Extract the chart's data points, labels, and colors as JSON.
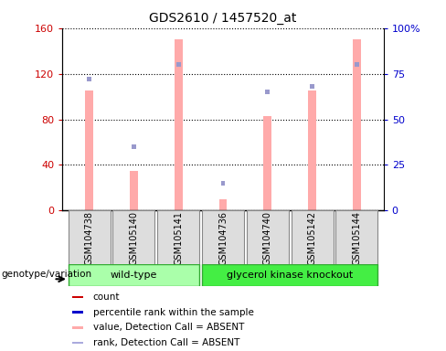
{
  "title": "GDS2610 / 1457520_at",
  "samples": [
    "GSM104738",
    "GSM105140",
    "GSM105141",
    "GSM104736",
    "GSM104740",
    "GSM105142",
    "GSM105144"
  ],
  "pink_values": [
    105,
    35,
    150,
    10,
    83,
    105,
    150
  ],
  "blue_ranks": [
    72,
    35,
    80,
    15,
    65,
    68,
    80
  ],
  "ylim_left": [
    0,
    160
  ],
  "ylim_right": [
    0,
    100
  ],
  "yticks_left": [
    0,
    40,
    80,
    120,
    160
  ],
  "yticks_right": [
    0,
    25,
    50,
    75,
    100
  ],
  "yticklabels_right": [
    "0",
    "25",
    "50",
    "75",
    "100%"
  ],
  "left_tick_color": "#cc0000",
  "right_tick_color": "#0000cc",
  "pink_color": "#ffaaaa",
  "blue_color": "#9999cc",
  "wild_type_color": "#aaffaa",
  "knockout_color": "#44ee44",
  "legend_items": [
    {
      "color": "#cc0000",
      "label": "count"
    },
    {
      "color": "#0000cc",
      "label": "percentile rank within the sample"
    },
    {
      "color": "#ffaaaa",
      "label": "value, Detection Call = ABSENT"
    },
    {
      "color": "#aaaadd",
      "label": "rank, Detection Call = ABSENT"
    }
  ],
  "genotype_label": "genotype/variation",
  "background_color": "#ffffff"
}
